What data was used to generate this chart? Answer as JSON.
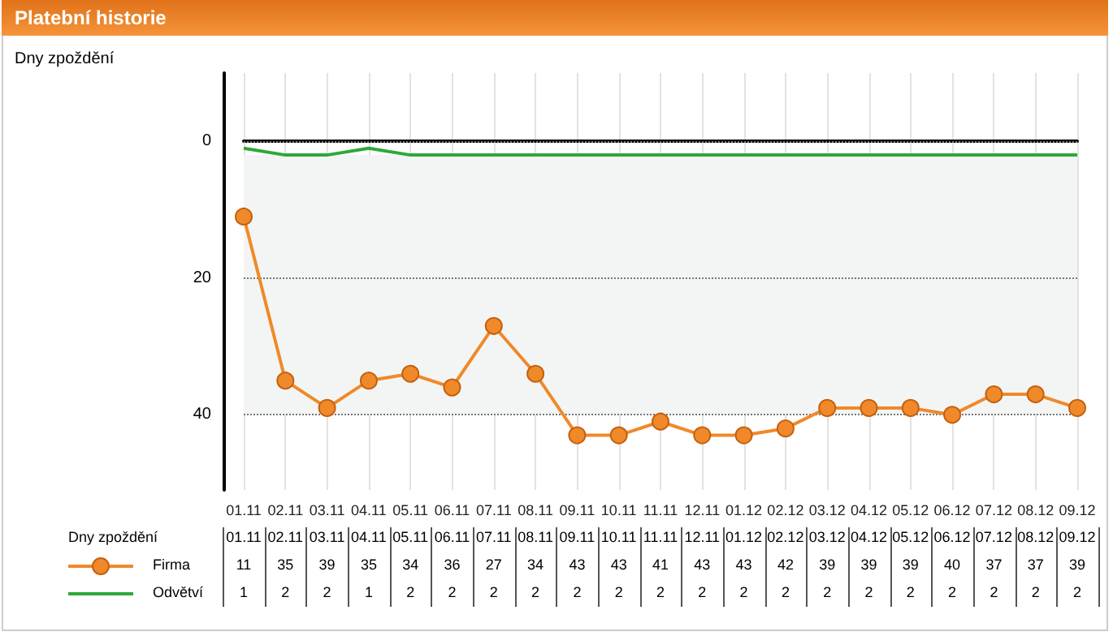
{
  "chart_data": {
    "type": "line",
    "title": "Platební historie",
    "ylabel": "Dny zpoždění",
    "categories": [
      "01.11",
      "02.11",
      "03.11",
      "04.11",
      "05.11",
      "06.11",
      "07.11",
      "08.11",
      "09.11",
      "10.11",
      "11.11",
      "12.11",
      "01.12",
      "02.12",
      "03.12",
      "04.12",
      "05.12",
      "06.12",
      "07.12",
      "08.12",
      "09.12"
    ],
    "series": [
      {
        "name": "Firma",
        "color": "#f0892a",
        "marker": "circle",
        "values": [
          11,
          35,
          39,
          35,
          34,
          36,
          27,
          34,
          43,
          43,
          41,
          43,
          43,
          42,
          39,
          39,
          39,
          40,
          37,
          37,
          39
        ]
      },
      {
        "name": "Odvětví",
        "color": "#2ea83a",
        "marker": "none",
        "values": [
          1,
          2,
          2,
          1,
          2,
          2,
          2,
          2,
          2,
          2,
          2,
          2,
          2,
          2,
          2,
          2,
          2,
          2,
          2,
          2,
          2
        ]
      }
    ],
    "ylim": [
      51,
      -10
    ],
    "yticks": [
      0,
      20,
      40
    ],
    "grid": true,
    "legend": "bottom",
    "data_labels": true,
    "bands": [
      {
        "axis": "y",
        "from": 2,
        "to": 40,
        "color": "#f3f5f4"
      }
    ]
  }
}
